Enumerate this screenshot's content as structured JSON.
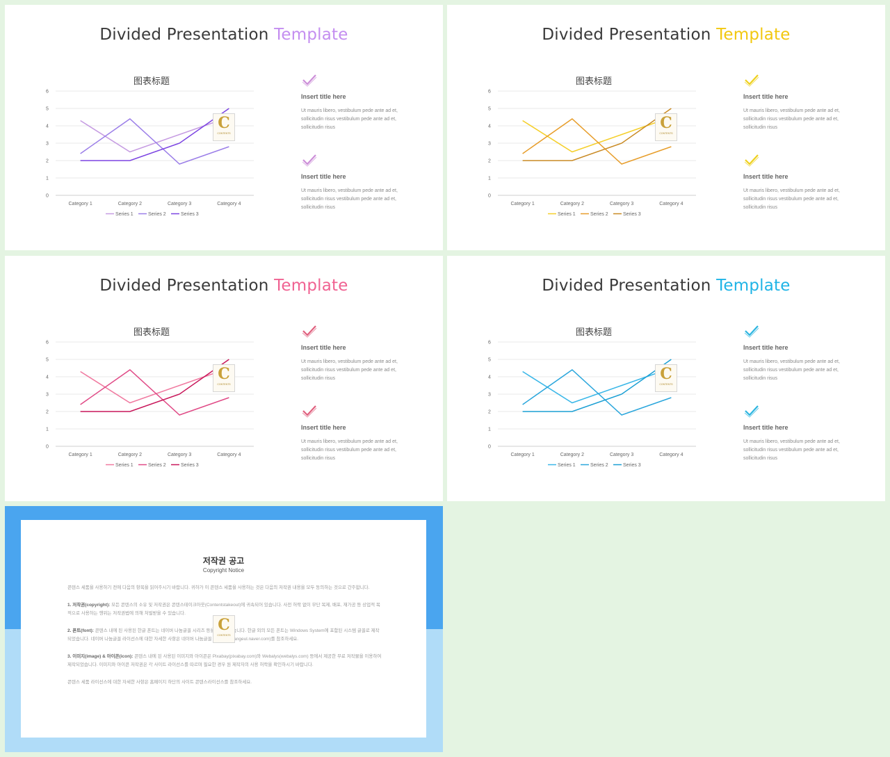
{
  "slides": [
    {
      "id": "purple",
      "title_main": "Divided Presentation ",
      "title_accent": "Template",
      "accent": "#c48ef0",
      "icon_color": "#cc8ed8",
      "series_colors": [
        "#c69ce2",
        "#9b7ee8",
        "#7b43e2"
      ],
      "chart_title": "图表标题",
      "items": [
        {
          "title": "Insert title here",
          "text": "Ut mauris libero, vestibulum pede ante ad et, sollicitudin risus vestibulum pede ante ad et, sollicitudin risus"
        },
        {
          "title": "Insert title here",
          "text": "Ut mauris libero, vestibulum pede ante ad et, sollicitudin risus vestibulum pede ante ad et, sollicitudin risus"
        }
      ]
    },
    {
      "id": "yellow",
      "title_main": "Divided Presentation ",
      "title_accent": "Template",
      "accent": "#f2c80f",
      "icon_color": "#eed01c",
      "series_colors": [
        "#f5cf2a",
        "#e79d2a",
        "#c98a24"
      ],
      "chart_title": "图表标题",
      "items": [
        {
          "title": "Insert title here",
          "text": "Ut mauris libero, vestibulum pede ante ad et, sollicitudin risus vestibulum pede ante ad et, sollicitudin risus"
        },
        {
          "title": "Insert title here",
          "text": "Ut mauris libero, vestibulum pede ante ad et, sollicitudin risus vestibulum pede ante ad et, sollicitudin risus"
        }
      ]
    },
    {
      "id": "pink",
      "title_main": "Divided Presentation ",
      "title_accent": "Template",
      "accent": "#f06292",
      "icon_color": "#e0607e",
      "series_colors": [
        "#f07aa0",
        "#e04a86",
        "#c8165a"
      ],
      "chart_title": "图表标题",
      "items": [
        {
          "title": "Insert title here",
          "text": "Ut mauris libero, vestibulum pede ante ad et, sollicitudin risus vestibulum pede ante ad et, sollicitudin risus"
        },
        {
          "title": "Insert title here",
          "text": "Ut mauris libero, vestibulum pede ante ad et, sollicitudin risus vestibulum pede ante ad et, sollicitudin risus"
        }
      ]
    },
    {
      "id": "blue",
      "title_main": "Divided Presentation ",
      "title_accent": "Template",
      "accent": "#1fb4e6",
      "icon_color": "#2cb5e0",
      "series_colors": [
        "#3ab7e8",
        "#2aa6dc",
        "#1a9fd4"
      ],
      "chart_title": "图表标题",
      "items": [
        {
          "title": "Insert title here",
          "text": "Ut mauris libero, vestibulum pede ante ad et, sollicitudin risus vestibulum pede ante ad et, sollicitudin risus"
        },
        {
          "title": "Insert title here",
          "text": "Ut mauris libero, vestibulum pede ante ad et, sollicitudin risus vestibulum pede ante ad et, sollicitudin risus"
        }
      ]
    }
  ],
  "chart_data": [
    {
      "type": "line",
      "title": "图表标题",
      "categories": [
        "Category 1",
        "Category 2",
        "Category 3",
        "Category 4"
      ],
      "series": [
        {
          "name": "Series 1",
          "values": [
            4.3,
            2.5,
            3.5,
            4.5
          ]
        },
        {
          "name": "Series 2",
          "values": [
            2.4,
            4.4,
            1.8,
            2.8
          ]
        },
        {
          "name": "Series 3",
          "values": [
            2.0,
            2.0,
            3.0,
            5.0
          ]
        }
      ],
      "ylim": [
        0,
        6
      ],
      "yticks": [
        "0",
        "1",
        "2",
        "3",
        "4",
        "5",
        "6"
      ],
      "grid": true,
      "legend": "bottom"
    }
  ],
  "logo": {
    "letter": "C",
    "sub": "CONTENTS"
  },
  "copyright": {
    "title": "저작권 공고",
    "subtitle": "Copyright Notice",
    "paragraphs": [
      {
        "head": "",
        "text": "콘텐스 세품을 사용하기 전에 다음의 항목을 읽어주시기 바랍니다. 귀하가 이 콘텐스 세품을 사용하는 것은 다음의 저작권 내용을 모두 동의하는 것으로 간주합니다."
      },
      {
        "head": "1. 저작권(copyright):",
        "text": " 모든 콘텐스의 소유 및 저작권은 콘텐스테이크아웃(Contentstakeout)에 귀속되어 있습니다. 사전 허락 없이 무단 복제, 배포, 재가공 등 상업적 목적으로 사용하는 행위는 저작권법에 의해 처벌받을 수 있습니다."
      },
      {
        "head": "2. 폰트(font):",
        "text": " 콘텐스 내에 된 사용된 한글 폰트는 네이버 나눔글꼴 시리즈 등을 사용하였습니다. 한글 외의 모든 폰트는 Windows System에 포함된 시스템 글꼴로 제작되었습니다. 네이버 나눔글꼴 라이선스에 대한 자세한 사항은 네이버 나눔글꼴 홈페이지(hangeul.naver.com)를 참조하세요."
      },
      {
        "head": "3. 이미지(image) & 아이콘(icon):",
        "text": " 콘텐스 내에 된 사용된 이미지와 아이콘은 Pixabay(pixabay.com)와 Webalys(webalys.com) 등에서 제공한 무료 저작물을 이용하여 제작되었습니다. 이미지와 아이콘 저작권은 각 사이트 라이선스를 따르며 필요한 경우 원 제작자의 사용 허락을 확인하시기 바랍니다."
      },
      {
        "head": "",
        "text": "콘텐스 세품 라이선스에 대한 자세한 사항은 홈페이지 하단의 사이트 콘텐스라이선스를 참조하세요."
      }
    ]
  }
}
